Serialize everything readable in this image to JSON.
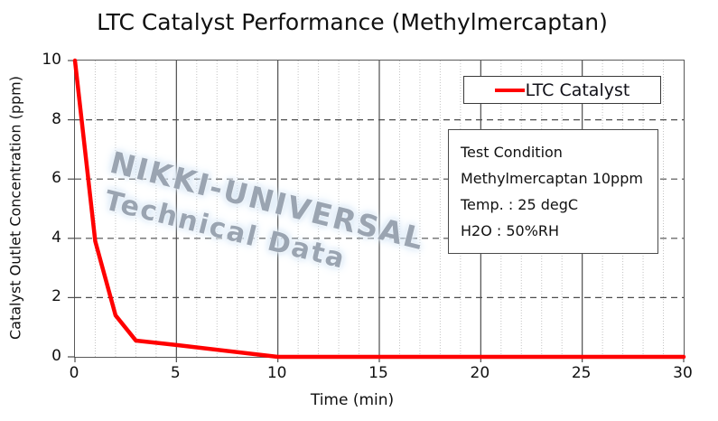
{
  "title": "LTC Catalyst Performance (Methylmercaptan)",
  "watermark": {
    "line1": "NIKKI-UNIVERSAL",
    "line2": "Technical Data"
  },
  "legend": {
    "label": "LTC Catalyst",
    "line_color": "#ff0000"
  },
  "info_box": {
    "lines": [
      "Test Condition",
      "Methylmercaptan 10ppm",
      "Temp. : 25 degC",
      "H2O : 50%RH"
    ]
  },
  "chart_data": {
    "type": "line",
    "title": "LTC Catalyst Performance (Methylmercaptan)",
    "xlabel": "Time (min)",
    "ylabel": "Catalyst Outlet Concentration  (ppm)",
    "xlim": [
      0,
      30
    ],
    "ylim": [
      0,
      10
    ],
    "x_ticks": [
      0,
      5,
      10,
      15,
      20,
      25,
      30
    ],
    "y_ticks": [
      0,
      2,
      4,
      6,
      8,
      10
    ],
    "x_minor_step": 1,
    "grid": {
      "vertical_minor": "dotted",
      "vertical_major": "solid",
      "horizontal_major": "dashed"
    },
    "legend_position": "upper right",
    "series": [
      {
        "name": "LTC Catalyst",
        "color": "#ff0000",
        "x": [
          0,
          1,
          2,
          3,
          5,
          10,
          15,
          20,
          25,
          30
        ],
        "y": [
          10,
          3.9,
          1.4,
          0.55,
          0.4,
          0,
          0,
          0,
          0,
          0
        ]
      }
    ]
  }
}
